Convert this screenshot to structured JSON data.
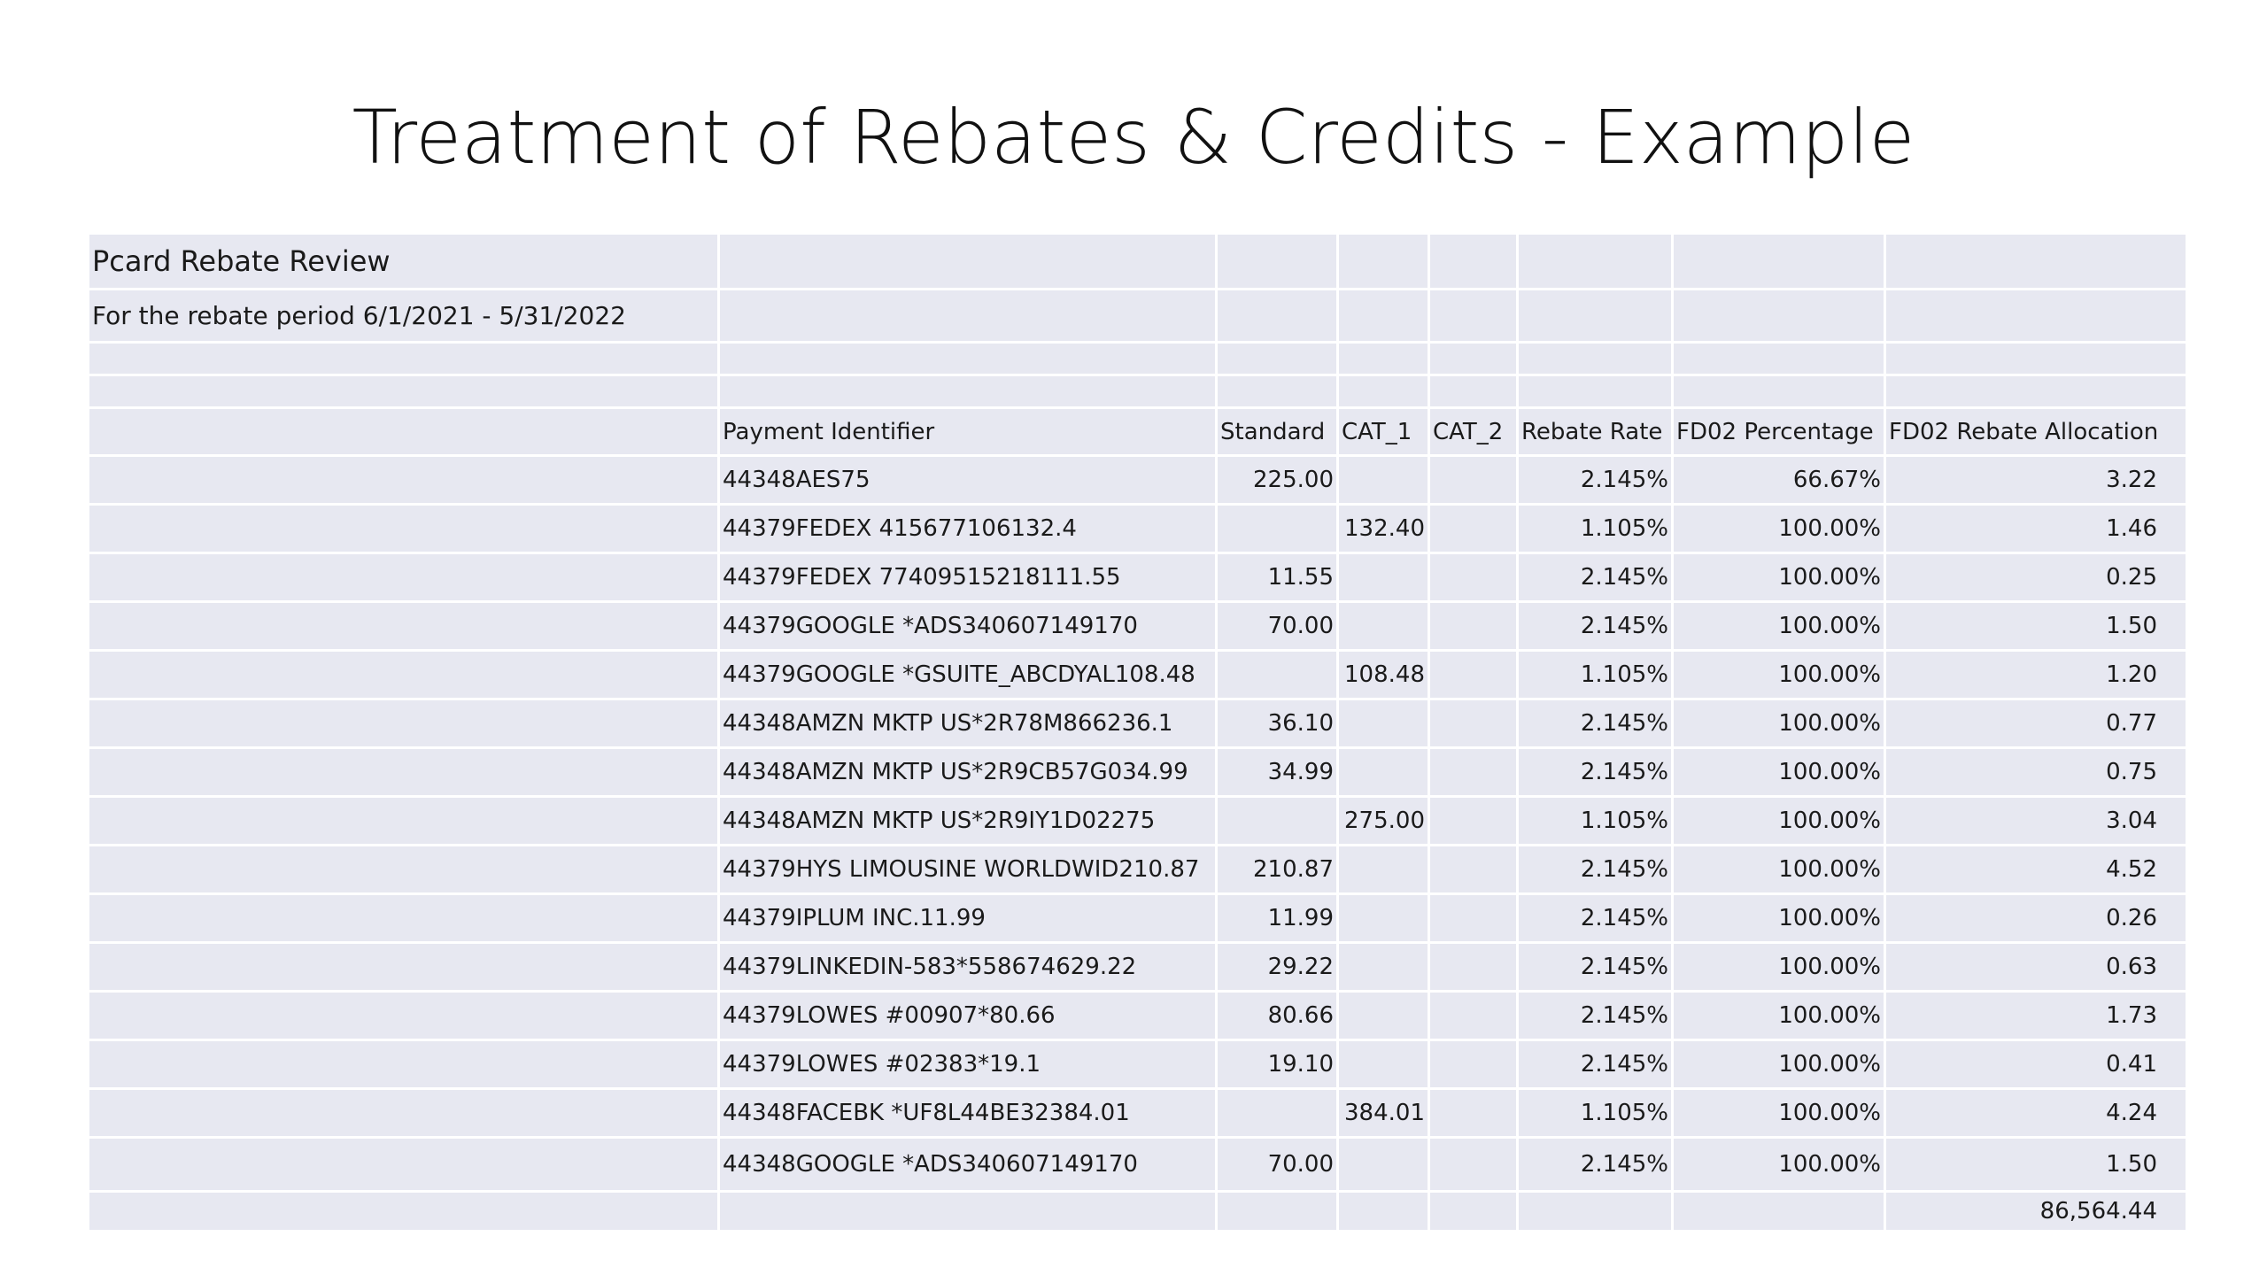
{
  "slide": {
    "title": "Treatment of Rebates & Credits - Example"
  },
  "sheet": {
    "heading": "Pcard Rebate Review",
    "period": "For the rebate period 6/1/2021 - 5/31/2022",
    "columns": {
      "payment_identifier": "Payment Identifier",
      "standard": "Standard",
      "cat_1": "CAT_1",
      "cat_2": "CAT_2",
      "rebate_rate": "Rebate Rate",
      "fd02_percentage": "FD02 Percentage",
      "fd02_rebate_allocation": "FD02 Rebate Allocation"
    },
    "rows": [
      {
        "id": "44348AES75",
        "standard": "225.00",
        "cat1": "",
        "cat2": "",
        "rate": "2.145%",
        "pct": "66.67%",
        "alloc": "3.22"
      },
      {
        "id": "44379FEDEX 415677106132.4",
        "standard": "",
        "cat1": "132.40",
        "cat2": "",
        "rate": "1.105%",
        "pct": "100.00%",
        "alloc": "1.46"
      },
      {
        "id": "44379FEDEX 77409515218111.55",
        "standard": "11.55",
        "cat1": "",
        "cat2": "",
        "rate": "2.145%",
        "pct": "100.00%",
        "alloc": "0.25"
      },
      {
        "id": "44379GOOGLE *ADS340607149170",
        "standard": "70.00",
        "cat1": "",
        "cat2": "",
        "rate": "2.145%",
        "pct": "100.00%",
        "alloc": "1.50"
      },
      {
        "id": "44379GOOGLE *GSUITE_ABCDYAL108.48",
        "standard": "",
        "cat1": "108.48",
        "cat2": "",
        "rate": "1.105%",
        "pct": "100.00%",
        "alloc": "1.20"
      },
      {
        "id": "44348AMZN MKTP US*2R78M866236.1",
        "standard": "36.10",
        "cat1": "",
        "cat2": "",
        "rate": "2.145%",
        "pct": "100.00%",
        "alloc": "0.77"
      },
      {
        "id": "44348AMZN MKTP US*2R9CB57G034.99",
        "standard": "34.99",
        "cat1": "",
        "cat2": "",
        "rate": "2.145%",
        "pct": "100.00%",
        "alloc": "0.75"
      },
      {
        "id": "44348AMZN MKTP US*2R9IY1D02275",
        "standard": "",
        "cat1": "275.00",
        "cat2": "",
        "rate": "1.105%",
        "pct": "100.00%",
        "alloc": "3.04"
      },
      {
        "id": "44379HYS LIMOUSINE WORLDWID210.87",
        "standard": "210.87",
        "cat1": "",
        "cat2": "",
        "rate": "2.145%",
        "pct": "100.00%",
        "alloc": "4.52"
      },
      {
        "id": "44379IPLUM INC.11.99",
        "standard": "11.99",
        "cat1": "",
        "cat2": "",
        "rate": "2.145%",
        "pct": "100.00%",
        "alloc": "0.26"
      },
      {
        "id": "44379LINKEDIN-583*558674629.22",
        "standard": "29.22",
        "cat1": "",
        "cat2": "",
        "rate": "2.145%",
        "pct": "100.00%",
        "alloc": "0.63"
      },
      {
        "id": "44379LOWES #00907*80.66",
        "standard": "80.66",
        "cat1": "",
        "cat2": "",
        "rate": "2.145%",
        "pct": "100.00%",
        "alloc": "1.73"
      },
      {
        "id": "44379LOWES #02383*19.1",
        "standard": "19.10",
        "cat1": "",
        "cat2": "",
        "rate": "2.145%",
        "pct": "100.00%",
        "alloc": "0.41"
      },
      {
        "id": "44348FACEBK *UF8L44BE32384.01",
        "standard": "",
        "cat1": "384.01",
        "cat2": "",
        "rate": "1.105%",
        "pct": "100.00%",
        "alloc": "4.24"
      },
      {
        "id": "44348GOOGLE *ADS340607149170",
        "standard": "70.00",
        "cat1": "",
        "cat2": "",
        "rate": "2.145%",
        "pct": "100.00%",
        "alloc": "1.50"
      }
    ],
    "total_allocation": "86,564.44"
  }
}
